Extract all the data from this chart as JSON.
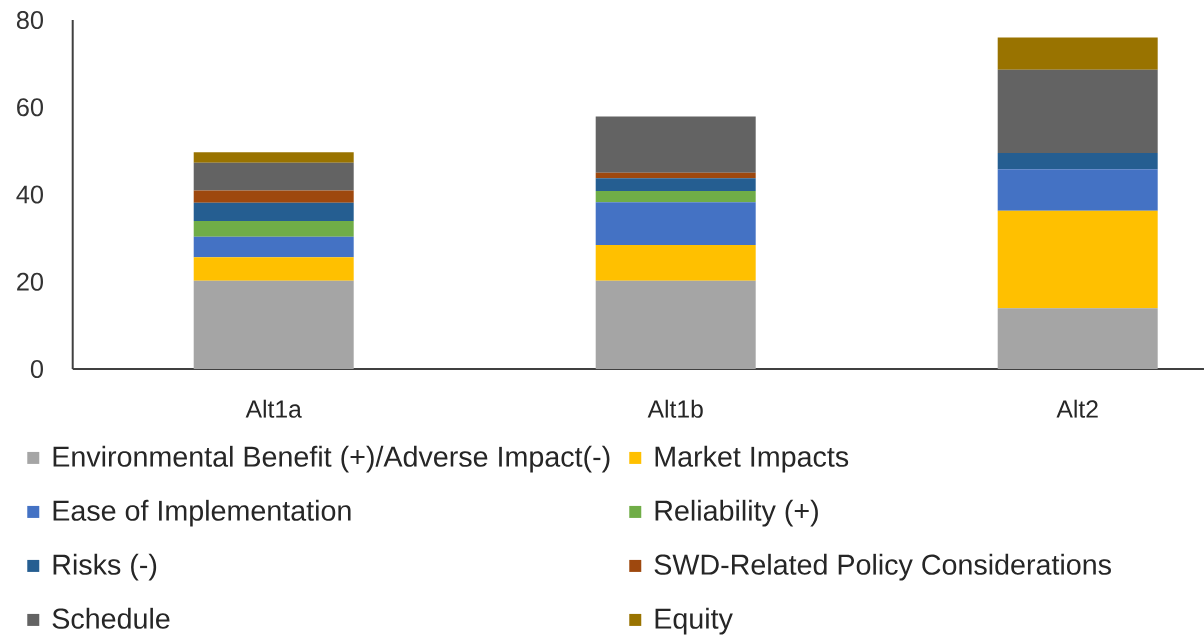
{
  "chart_data": {
    "type": "bar",
    "stacked": true,
    "categories": [
      "Alt1a",
      "Alt1b",
      "Alt2"
    ],
    "series": [
      {
        "name": "Environmental Benefit (+)/Adverse Impact(-)",
        "color": "#a5a5a5",
        "values": [
          20.2,
          20.2,
          13.9
        ]
      },
      {
        "name": "Market Impacts",
        "color": "#ffc000",
        "values": [
          5.4,
          8.2,
          22.4
        ]
      },
      {
        "name": "Ease of Implementation",
        "color": "#4472c4",
        "values": [
          4.7,
          9.8,
          9.5
        ]
      },
      {
        "name": "Reliability (+)",
        "color": "#70ad47",
        "values": [
          3.6,
          2.6,
          0
        ]
      },
      {
        "name": "Risks (-)",
        "color": "#255e91",
        "values": [
          4.2,
          2.9,
          3.7
        ]
      },
      {
        "name": "SWD-Related Policy Considerations",
        "color": "#9e480e",
        "values": [
          2.8,
          1.3,
          0
        ]
      },
      {
        "name": "Schedule",
        "color": "#636363",
        "values": [
          6.4,
          12.9,
          19.1
        ]
      },
      {
        "name": "Equity",
        "color": "#997300",
        "values": [
          2.4,
          0,
          7.4
        ]
      }
    ],
    "ylim": [
      0,
      80
    ],
    "yticks": [
      0,
      20,
      40,
      60,
      80
    ],
    "legend": "bottom"
  }
}
